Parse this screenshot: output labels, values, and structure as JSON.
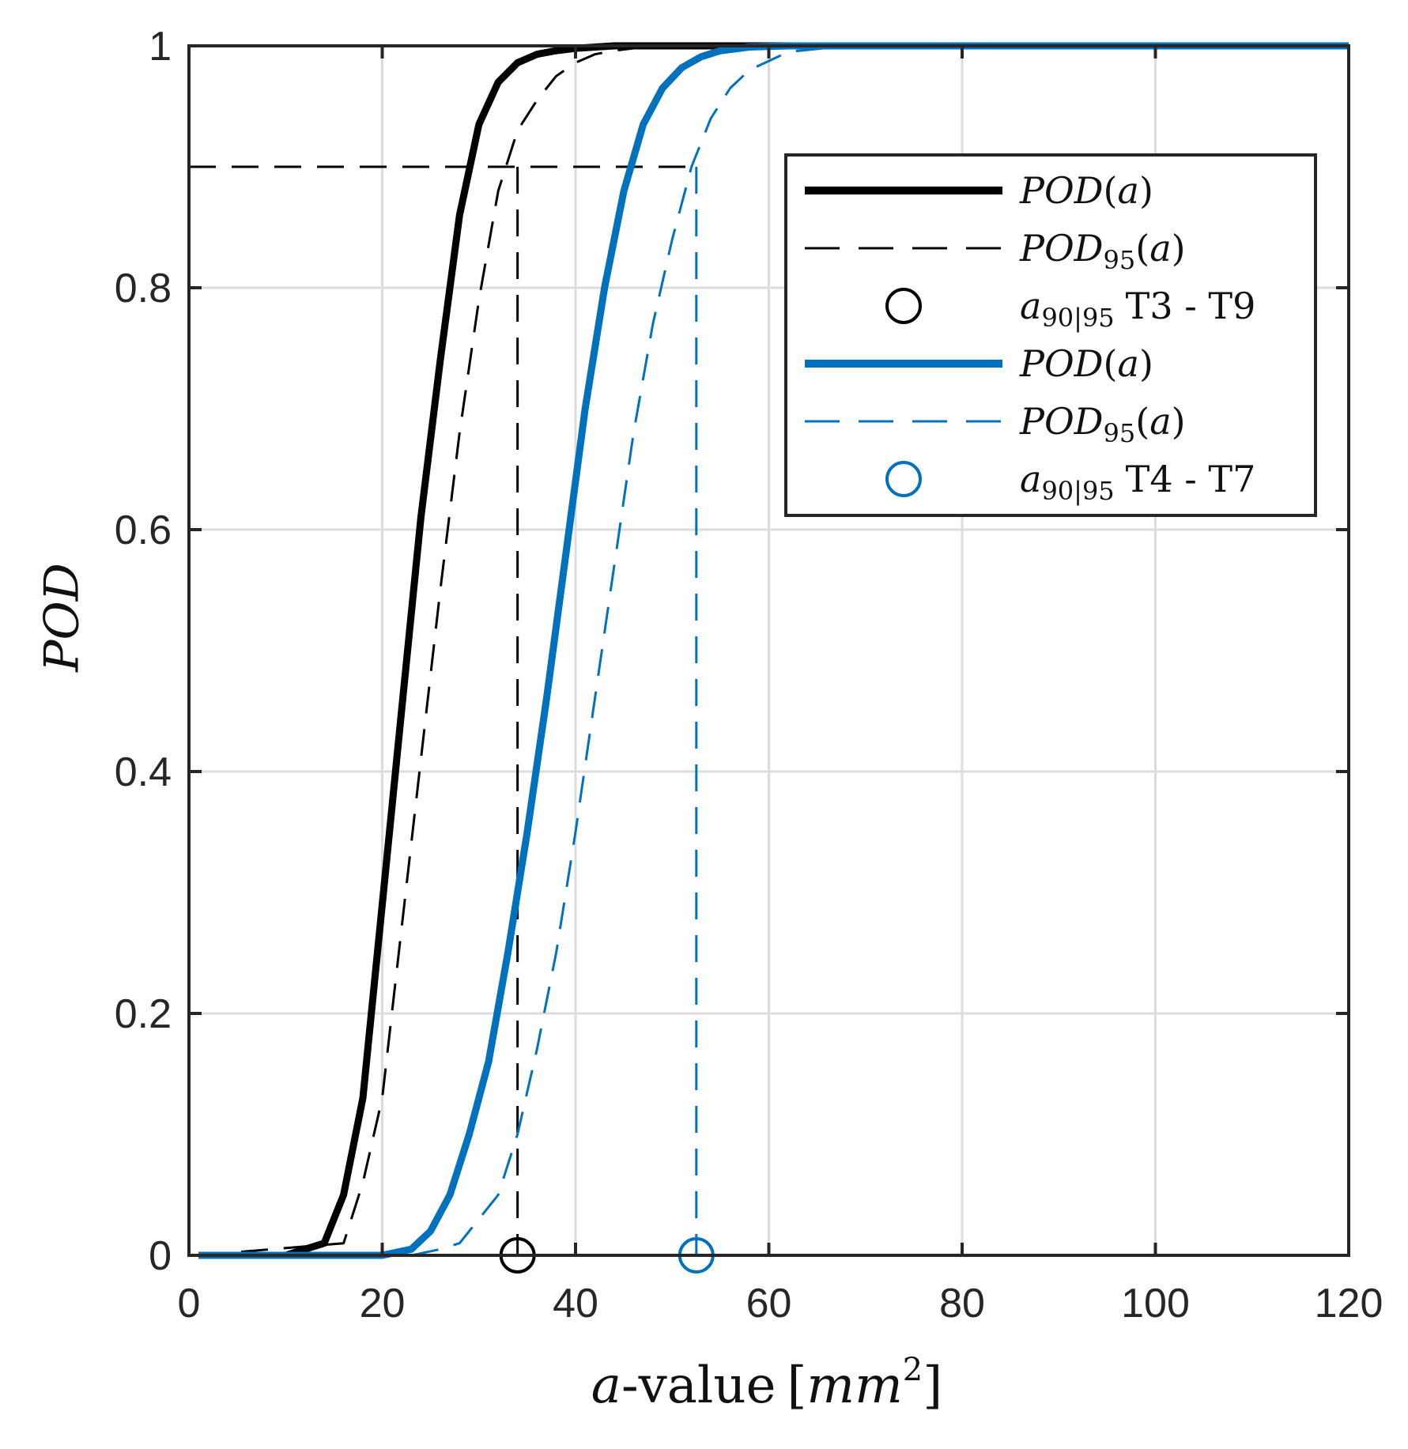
{
  "chart_data": {
    "type": "line",
    "title": "",
    "xlabel": "a-value [mm²]",
    "xlabel_parts": {
      "var": "a",
      "rest": "-value",
      "unit_open": "[",
      "unit": "mm",
      "unit_exp": "2",
      "unit_close": "]"
    },
    "ylabel": "POD",
    "xlim": [
      0,
      120
    ],
    "ylim": [
      0,
      1
    ],
    "xticks": [
      0,
      20,
      40,
      60,
      80,
      100,
      120
    ],
    "xtick_labels": [
      "0",
      "20",
      "40",
      "60",
      "80",
      "100",
      "120"
    ],
    "yticks": [
      0,
      0.2,
      0.4,
      0.6,
      0.8,
      1
    ],
    "ytick_labels": [
      "0",
      "0.2",
      "0.4",
      "0.6",
      "0.8",
      "1"
    ],
    "grid": true,
    "legend_position": "top-right",
    "threshold": {
      "pod": 0.9,
      "x_end": 52.5
    },
    "colors": {
      "group1": "#000000",
      "group2": "#0072BD",
      "grid": "#dcdcdc"
    },
    "series": [
      {
        "name": "POD(a)",
        "group": "T3 - T9",
        "style": "solid-thick",
        "x": [
          1,
          10,
          14,
          16,
          18,
          20,
          22,
          24,
          26,
          28,
          30,
          32,
          34,
          36,
          38,
          40,
          44,
          50,
          60,
          120
        ],
        "y": [
          0,
          0,
          0.01,
          0.05,
          0.13,
          0.29,
          0.45,
          0.61,
          0.74,
          0.86,
          0.935,
          0.97,
          0.986,
          0.993,
          0.996,
          0.998,
          1,
          1,
          1,
          1
        ]
      },
      {
        "name": "POD95(a)",
        "group": "T3 - T9",
        "style": "dashed",
        "x": [
          1,
          16,
          18,
          20,
          22,
          24,
          26,
          28,
          30,
          32,
          34,
          36,
          38,
          40,
          42,
          44,
          48,
          60,
          120
        ],
        "y": [
          0,
          0.01,
          0.06,
          0.13,
          0.27,
          0.41,
          0.55,
          0.68,
          0.79,
          0.88,
          0.93,
          0.955,
          0.975,
          0.986,
          0.993,
          0.996,
          1,
          1,
          1
        ]
      },
      {
        "name": "POD(a)",
        "group": "T4 - T7",
        "style": "solid-thick",
        "x": [
          1,
          20,
          23,
          25,
          27,
          29,
          31,
          33,
          35,
          37,
          39,
          41,
          43,
          45,
          47,
          49,
          51,
          53,
          55,
          58,
          62,
          120
        ],
        "y": [
          0,
          0,
          0.005,
          0.02,
          0.05,
          0.1,
          0.16,
          0.25,
          0.35,
          0.46,
          0.58,
          0.7,
          0.8,
          0.88,
          0.935,
          0.965,
          0.982,
          0.991,
          0.996,
          0.999,
          1,
          1
        ]
      },
      {
        "name": "POD95(a)",
        "group": "T4 - T7",
        "style": "dashed",
        "x": [
          1,
          23,
          26,
          28,
          30,
          32,
          34,
          36,
          38,
          40,
          42,
          44,
          46,
          48,
          50,
          52,
          54,
          56,
          58,
          62,
          68,
          120
        ],
        "y": [
          0,
          0,
          0.005,
          0.01,
          0.03,
          0.05,
          0.1,
          0.17,
          0.25,
          0.35,
          0.46,
          0.57,
          0.68,
          0.77,
          0.84,
          0.9,
          0.94,
          0.965,
          0.98,
          0.995,
          1,
          1
        ]
      }
    ],
    "a90_95": [
      {
        "label": "T3 - T9",
        "x": 34,
        "y": 0,
        "color": "#000000"
      },
      {
        "label": "T4 - T7",
        "x": 52.5,
        "y": 0,
        "color": "#0072BD"
      }
    ],
    "legend": [
      {
        "label": "POD(a)",
        "kind": "solid",
        "color": "#000000"
      },
      {
        "label": "POD95(a)",
        "kind": "dashed",
        "color": "#000000"
      },
      {
        "label": "a90|95 T3 - T9",
        "kind": "marker",
        "color": "#000000"
      },
      {
        "label": "POD(a)",
        "kind": "solid",
        "color": "#0072BD"
      },
      {
        "label": "POD95(a)",
        "kind": "dashed",
        "color": "#0072BD"
      },
      {
        "label": "a90|95 T4 - T7",
        "kind": "marker",
        "color": "#0072BD"
      }
    ]
  }
}
